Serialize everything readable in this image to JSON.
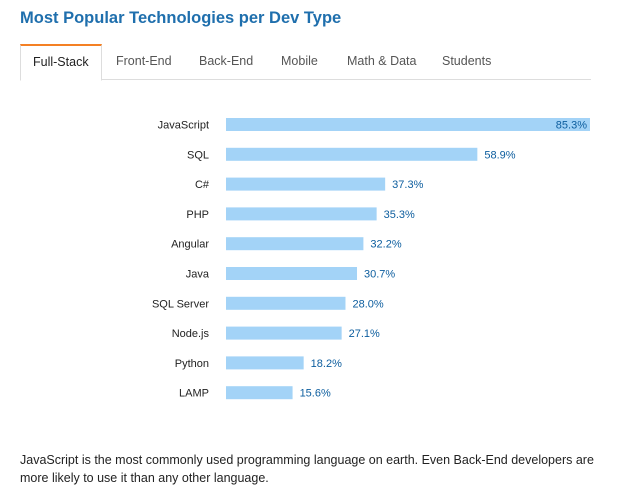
{
  "title": "Most Popular Technologies per Dev Type",
  "tabs": [
    {
      "label": "Full-Stack",
      "active": true
    },
    {
      "label": "Front-End",
      "active": false
    },
    {
      "label": "Back-End",
      "active": false
    },
    {
      "label": "Mobile",
      "active": false
    },
    {
      "label": "Math & Data",
      "active": false
    },
    {
      "label": "Students",
      "active": false
    }
  ],
  "chart_data": {
    "type": "bar",
    "orientation": "horizontal",
    "categories": [
      "JavaScript",
      "SQL",
      "C#",
      "PHP",
      "Angular",
      "Java",
      "SQL Server",
      "Node.js",
      "Python",
      "LAMP"
    ],
    "values": [
      85.3,
      58.9,
      37.3,
      35.3,
      32.2,
      30.7,
      28.0,
      27.1,
      18.2,
      15.6
    ],
    "value_labels": [
      "85.3%",
      "58.9%",
      "37.3%",
      "35.3%",
      "32.2%",
      "30.7%",
      "28.0%",
      "27.1%",
      "18.2%",
      "15.6%"
    ],
    "title": "",
    "xlabel": "",
    "ylabel": "",
    "xlim": [
      0,
      85.3
    ],
    "grid": false,
    "bar_color": "#a3d3f7",
    "label_color": "#0c5d9e"
  },
  "footer_text": "JavaScript is the most commonly used programming language on earth. Even Back-End developers are more likely to use it than any other language.",
  "colors": {
    "title": "#1f6fad",
    "tab_active_accent": "#f48024"
  }
}
